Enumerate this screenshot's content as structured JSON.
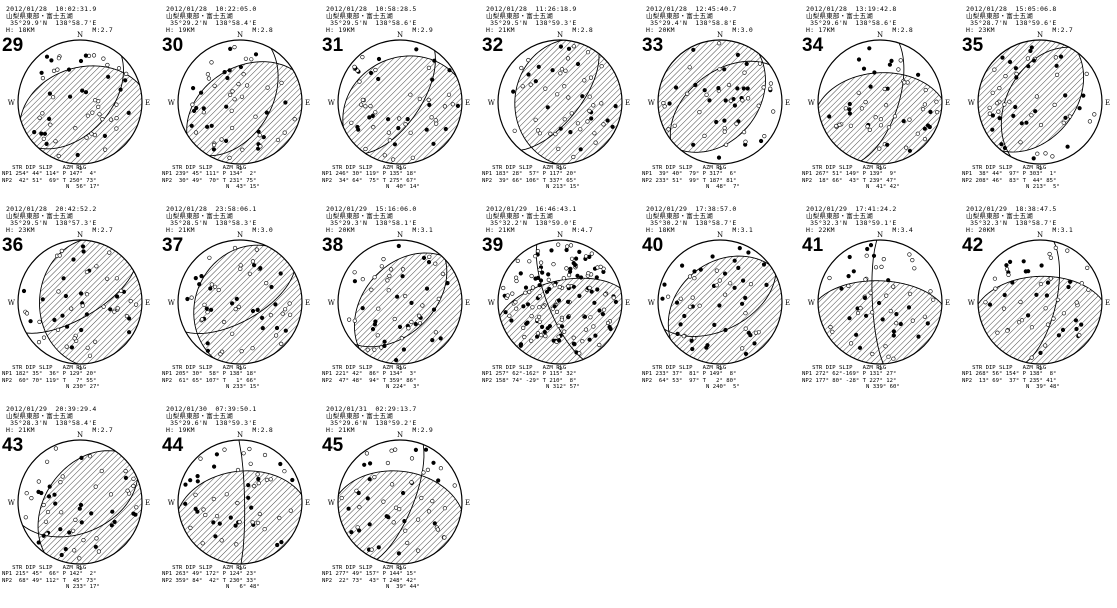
{
  "compass": {
    "north": "N",
    "south": "S",
    "east": "E",
    "west": "W",
    "p_axis": "P",
    "t_axis": "T"
  },
  "table_header": "   STR DIP SLIP   AZM PLG",
  "events": [
    {
      "num": "29",
      "date": "2012/01/28",
      "time": "10:02:31.9",
      "location": "山梨県東部・富士五湖",
      "lat": "35°29.9'N",
      "lon": "138°58.7'E",
      "depth": "H: 18KM",
      "mag": "M:2.7",
      "np1": "NP1 254° 44° 114°",
      "np2": "NP2  42° 51°  69°",
      "p": "P 147°  4°",
      "t": "T 250° 73°",
      "n": "N  56° 17°"
    },
    {
      "num": "30",
      "date": "2012/01/28",
      "time": "10:22:05.0",
      "location": "山梨県東部・富士五湖",
      "lat": "35°29.2'N",
      "lon": "138°58.4'E",
      "depth": "H: 19KM",
      "mag": "M:2.8",
      "np1": "NP1 239° 45° 111°",
      "np2": "NP2  30° 49°  70°",
      "p": "P 134°  2°",
      "t": "T 231° 75°",
      "n": "N  43° 15°"
    },
    {
      "num": "31",
      "date": "2012/01/28",
      "time": "10:58:28.5",
      "location": "山梨県東部・富士五湖",
      "lat": "35°29.5'N",
      "lon": "138°58.6'E",
      "depth": "H: 19KM",
      "mag": "M:2.9",
      "np1": "NP1 246° 30° 119°",
      "np2": "NP2  34° 64°  75°",
      "p": "P 135° 18°",
      "t": "T 275° 67°",
      "n": "N  40° 14°"
    },
    {
      "num": "32",
      "date": "2012/01/28",
      "time": "11:26:18.9",
      "location": "山梨県東部・富士五湖",
      "lat": "35°29.5'N",
      "lon": "138°59.3'E",
      "depth": "H: 21KM",
      "mag": "M:2.8",
      "np1": "NP1 183° 28°  57°",
      "np2": "NP2  39° 66° 106°",
      "p": "P 117° 20°",
      "t": "T 337° 65°",
      "n": "N 213° 15°"
    },
    {
      "num": "33",
      "date": "2012/01/28",
      "time": "12:45:40.7",
      "location": "山梨県東部・富士五湖",
      "lat": "35°29.4'N",
      "lon": "138°58.8'E",
      "depth": "H: 20KM",
      "mag": "M:3.0",
      "np1": "NP1  39° 40°  79°",
      "np2": "NP2 233° 51°  99°",
      "p": "P 317°  6°",
      "t": "T 187° 81°",
      "n": "N  48°  7°"
    },
    {
      "num": "34",
      "date": "2012/01/28",
      "time": "13:19:42.8",
      "location": "山梨県東部・富士五湖",
      "lat": "35°29.6'N",
      "lon": "138°58.6'E",
      "depth": "H: 17KM",
      "mag": "M:2.8",
      "np1": "NP1 267° 51° 149°",
      "np2": "NP2  18° 66°  43°",
      "p": "P 139°  9°",
      "t": "T 239° 47°",
      "n": "N  41° 42°"
    },
    {
      "num": "35",
      "date": "2012/01/28",
      "time": "15:05:06.8",
      "location": "山梨県東部・富士五湖",
      "lat": "35°28.7'N",
      "lon": "138°59.6'E",
      "depth": "H: 23KM",
      "mag": "M:2.7",
      "np1": "NP1  38° 44°  97°",
      "np2": "NP2 208° 46°  83°",
      "p": "P 303°  1°",
      "t": "T  44° 85°",
      "n": "N 213°  5°"
    },
    {
      "num": "36",
      "date": "2012/01/28",
      "time": "20:42:52.2",
      "location": "山梨県東部・富士五湖",
      "lat": "35°29.5'N",
      "lon": "138°57.3'E",
      "depth": "H: 23KM",
      "mag": "M:2.7",
      "np1": "NP1 182° 35°  36°",
      "np2": "NP2  60° 70° 119°",
      "p": "P 129° 20°",
      "t": "T   7° 55°",
      "n": "N 230° 27°"
    },
    {
      "num": "37",
      "date": "2012/01/28",
      "time": "23:58:06.1",
      "location": "山梨県東部・富士五湖",
      "lat": "35°28.5'N",
      "lon": "138°58.3'E",
      "depth": "H: 21KM",
      "mag": "M:3.0",
      "np1": "NP1 205° 30°  58°",
      "np2": "NP2  61° 65° 107°",
      "p": "P 138° 18°",
      "t": "T   1° 66°",
      "n": "N 233° 15°"
    },
    {
      "num": "38",
      "date": "2012/01/29",
      "time": "15:16:06.0",
      "location": "山梨県東部・富士五湖",
      "lat": "35°29.3'N",
      "lon": "138°58.1'E",
      "depth": "H: 20KM",
      "mag": "M:3.1",
      "np1": "NP1 221° 42°  86°",
      "np2": "NP2  47° 48°  94°",
      "p": "P 134°  3°",
      "t": "T 359° 86°",
      "n": "N 224°  3°"
    },
    {
      "num": "39",
      "date": "2012/01/29",
      "time": "16:46:43.1",
      "location": "山梨県東部・富士五湖",
      "lat": "35°32.2'N",
      "lon": "138°59.0'E",
      "depth": "H: 21KM",
      "mag": "M:4.7",
      "np1": "NP1 257° 62°-162°",
      "np2": "NP2 158° 74° -29°",
      "p": "P 115° 32°",
      "t": "T 210°  8°",
      "n": "N 312° 57°"
    },
    {
      "num": "40",
      "date": "2012/01/29",
      "time": "17:38:57.0",
      "location": "山梨県東部・富士五湖",
      "lat": "35°30.2'N",
      "lon": "138°58.7'E",
      "depth": "H: 18KM",
      "mag": "M:3.1",
      "np1": "NP1 233° 37°  81°",
      "np2": "NP2  64° 53°  97°",
      "p": "P 149°  8°",
      "t": "T   2° 80°",
      "n": "N 240°  5°"
    },
    {
      "num": "41",
      "date": "2012/01/29",
      "time": "17:41:24.2",
      "location": "山梨県東部・富士五湖",
      "lat": "35°32.3'N",
      "lon": "138°59.1'E",
      "depth": "H: 22KM",
      "mag": "M:3.4",
      "np1": "NP1 272° 62°-169°",
      "np2": "NP2 177° 80° -28°",
      "p": "P 131° 27°",
      "t": "T 227° 12°",
      "n": "N 339° 60°"
    },
    {
      "num": "42",
      "date": "2012/01/29",
      "time": "18:38:47.5",
      "location": "山梨県東部・富士五湖",
      "lat": "35°32.3'N",
      "lon": "138°58.7'E",
      "depth": "H: 20KM",
      "mag": "M:3.1",
      "np1": "NP1 268° 56° 154°",
      "np2": "NP2  13° 69°  37°",
      "p": "P 138°  8°",
      "t": "T 235° 41°",
      "n": "N  39° 48°"
    },
    {
      "num": "43",
      "date": "2012/01/29",
      "time": "20:39:29.4",
      "location": "山梨県東部・富士五湖",
      "lat": "35°28.3'N",
      "lon": "138°58.4'E",
      "depth": "H: 21KM",
      "mag": "M:2.7",
      "np1": "NP1 215° 45°  66°",
      "np2": "NP2  68° 49° 112°",
      "p": "P 142°  2°",
      "t": "T  45° 73°",
      "n": "N 233° 17°"
    },
    {
      "num": "44",
      "date": "2012/01/30",
      "time": "07:39:50.1",
      "location": "山梨県東部・富士五湖",
      "lat": "35°29.6'N",
      "lon": "138°59.3'E",
      "depth": "H: 19KM",
      "mag": "M:2.8",
      "np1": "NP1 263° 49° 172°",
      "np2": "NP2 359° 84°  42°",
      "p": "P 124° 23°",
      "t": "T 230° 33°",
      "n": "N   6° 48°"
    },
    {
      "num": "45",
      "date": "2012/01/31",
      "time": "02:29:13.7",
      "location": "山梨県東部・富士五湖",
      "lat": "35°29.6'N",
      "lon": "138°59.2'E",
      "depth": "H: 21KM",
      "mag": "M:2.9",
      "np1": "NP1 277° 49° 157°",
      "np2": "NP2  22° 73°  43°",
      "p": "P 144° 15°",
      "t": "T 248° 42°",
      "n": "N  39° 44°"
    }
  ]
}
